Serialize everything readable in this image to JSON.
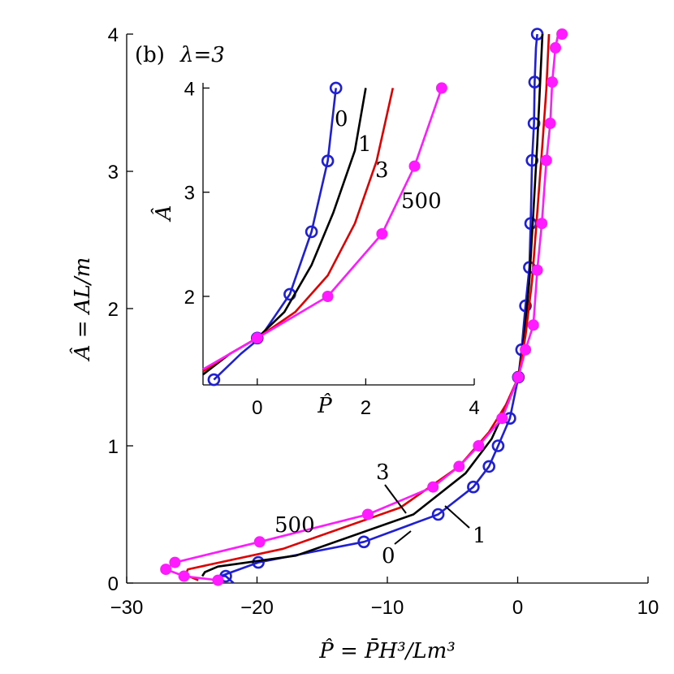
{
  "chart_data": [
    {
      "type": "line",
      "panel_label": "(b)",
      "lambda_label": "λ=3",
      "xlabel": "P̂ = P̄H³/Lm³",
      "ylabel": "Â = AL/m",
      "xlim": [
        -30,
        10
      ],
      "ylim": [
        0,
        4
      ],
      "xticks": [
        "−30",
        "−20",
        "−10",
        "0",
        "10"
      ],
      "yticks": [
        "0",
        "1",
        "2",
        "3",
        "4"
      ],
      "grid": false,
      "series": [
        {
          "name": "0",
          "color": "#1f1fd6",
          "marker": "open-circle",
          "x": [
            -21.8,
            -22.4,
            -22.8,
            -19.9,
            -11.8,
            -6.1,
            -3.4,
            -2.2,
            -1.5,
            -0.6,
            0.05,
            0.3,
            0.6,
            0.9,
            1.0,
            1.1,
            1.25,
            1.3,
            1.4,
            1.5
          ],
          "y": [
            0.0,
            0.05,
            0.05,
            0.15,
            0.3,
            0.5,
            0.7,
            0.85,
            1.0,
            1.2,
            1.5,
            1.7,
            2.02,
            2.3,
            2.62,
            3.08,
            3.35,
            3.65,
            3.9,
            4.0
          ],
          "markers_x": [
            -22.4,
            -19.9,
            -11.8,
            -6.1,
            -3.4,
            -2.2,
            -1.5,
            -0.6,
            0.05,
            0.3,
            0.6,
            0.9,
            1.0,
            1.1,
            1.25,
            1.3,
            1.5
          ],
          "markers_y": [
            0.05,
            0.15,
            0.3,
            0.5,
            0.7,
            0.85,
            1.0,
            1.2,
            1.5,
            1.7,
            2.02,
            2.3,
            2.62,
            3.08,
            3.35,
            3.65,
            4.0
          ]
        },
        {
          "name": "1",
          "color": "#000000",
          "marker": "none",
          "x": [
            -24.2,
            -24.0,
            -23.0,
            -17.0,
            -8.0,
            -4.0,
            -2.0,
            -0.8,
            0.05,
            0.5,
            0.9,
            1.2,
            1.5,
            1.7,
            1.9
          ],
          "y": [
            0.05,
            0.08,
            0.12,
            0.2,
            0.5,
            0.8,
            1.05,
            1.3,
            1.5,
            1.8,
            2.2,
            2.7,
            3.2,
            3.6,
            4.0
          ]
        },
        {
          "name": "3",
          "color": "#e00000",
          "marker": "none",
          "x": [
            -24.5,
            -25.5,
            -25.3,
            -18.0,
            -9.0,
            -4.5,
            -2.2,
            -0.9,
            0.05,
            0.6,
            1.1,
            1.5,
            1.9,
            2.2,
            2.4
          ],
          "y": [
            0.02,
            0.06,
            0.1,
            0.25,
            0.55,
            0.85,
            1.1,
            1.3,
            1.5,
            1.8,
            2.2,
            2.7,
            3.2,
            3.6,
            4.0
          ]
        },
        {
          "name": "500",
          "color": "#ff1aff",
          "marker": "filled-circle",
          "x": [
            -23.0,
            -25.6,
            -27.0,
            -26.3,
            -19.8,
            -11.5,
            -6.5,
            -4.5,
            -3.0,
            -1.2,
            0.05,
            0.6,
            1.2,
            1.5,
            1.85,
            2.2,
            2.5,
            2.65,
            2.9,
            3.1,
            3.4
          ],
          "y": [
            0.02,
            0.05,
            0.1,
            0.15,
            0.3,
            0.5,
            0.7,
            0.85,
            1.0,
            1.2,
            1.5,
            1.7,
            1.88,
            2.28,
            2.62,
            3.08,
            3.35,
            3.65,
            3.9,
            4.0,
            4.0
          ],
          "markers_x": [
            -23.0,
            -25.6,
            -27.0,
            -26.3,
            -19.8,
            -11.5,
            -6.5,
            -4.5,
            -3.0,
            -1.2,
            0.05,
            0.6,
            1.2,
            1.5,
            1.85,
            2.2,
            2.5,
            2.65,
            2.9,
            3.4
          ],
          "markers_y": [
            0.02,
            0.05,
            0.1,
            0.15,
            0.3,
            0.5,
            0.7,
            0.85,
            1.0,
            1.2,
            1.5,
            1.7,
            1.88,
            2.28,
            2.62,
            3.08,
            3.35,
            3.65,
            3.9,
            4.0
          ]
        }
      ]
    },
    {
      "type": "line",
      "panel_label": "inset",
      "xlabel": "P̂",
      "ylabel": "Â",
      "xlim": [
        -1,
        4
      ],
      "ylim": [
        1.15,
        4.05
      ],
      "xticks": [
        "0",
        "2",
        "4"
      ],
      "yticks": [
        "2",
        "3",
        "4"
      ],
      "grid": false,
      "series": [
        {
          "name": "0",
          "color": "#1f1fd6",
          "marker": "open-circle",
          "x": [
            -0.8,
            -0.3,
            0.05,
            0.6,
            1.0,
            1.3,
            1.45
          ],
          "y": [
            1.2,
            1.45,
            1.6,
            2.02,
            2.62,
            3.3,
            4.0
          ],
          "markers_x": [
            -0.8,
            0.0,
            0.6,
            1.0,
            1.3,
            1.45
          ],
          "markers_y": [
            1.2,
            1.6,
            2.02,
            2.62,
            3.3,
            4.0
          ]
        },
        {
          "name": "1",
          "color": "#000000",
          "marker": "none",
          "x": [
            -1.0,
            -0.5,
            0.0,
            0.5,
            1.0,
            1.4,
            1.8,
            2.0
          ],
          "y": [
            1.25,
            1.45,
            1.6,
            1.85,
            2.3,
            2.8,
            3.4,
            4.0
          ]
        },
        {
          "name": "3",
          "color": "#e00000",
          "marker": "none",
          "x": [
            -1.0,
            -0.5,
            0.0,
            0.7,
            1.3,
            1.8,
            2.2,
            2.5
          ],
          "y": [
            1.28,
            1.45,
            1.6,
            1.85,
            2.2,
            2.7,
            3.3,
            4.0
          ]
        },
        {
          "name": "500",
          "color": "#ff1aff",
          "marker": "filled-circle",
          "x": [
            -1.0,
            0.0,
            1.3,
            2.3,
            2.9,
            3.4
          ],
          "y": [
            1.3,
            1.6,
            2.0,
            2.6,
            3.25,
            4.0
          ],
          "markers_x": [
            0.0,
            1.3,
            2.3,
            2.9,
            3.4
          ],
          "markers_y": [
            1.6,
            2.0,
            2.6,
            3.25,
            4.0
          ]
        }
      ]
    }
  ]
}
